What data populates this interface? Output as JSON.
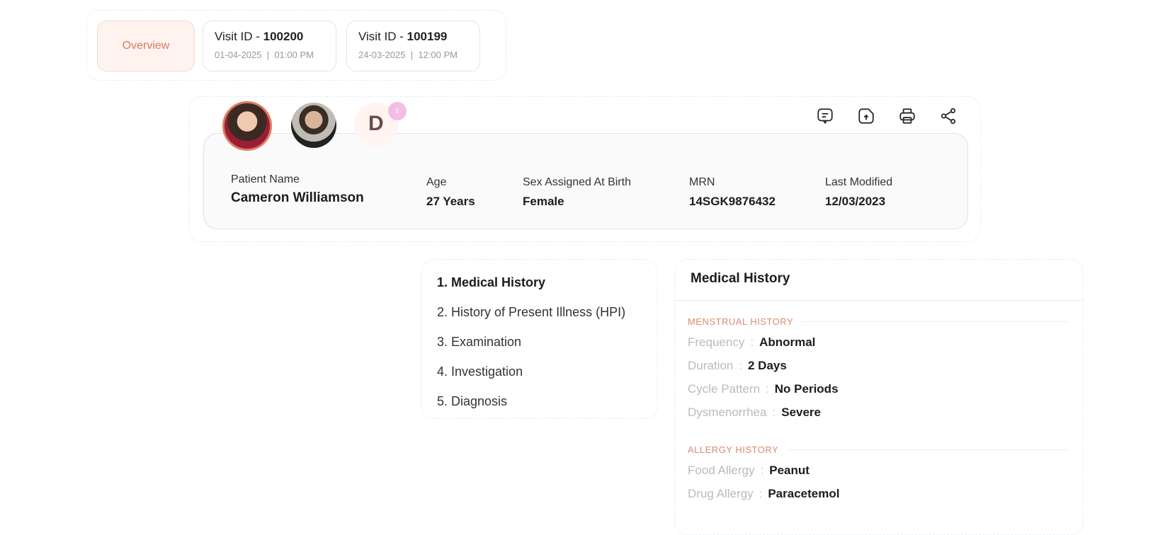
{
  "tabs": {
    "overview": "Overview",
    "visits": [
      {
        "prefix": "Visit ID - ",
        "id": "100200",
        "date": "01-04-2025",
        "time": "01:00 PM"
      },
      {
        "prefix": "Visit ID - ",
        "id": "100199",
        "date": "24-03-2025",
        "time": "12:00 PM"
      }
    ]
  },
  "patient": {
    "avatar_letter": "D",
    "fields": [
      {
        "label": "Patient Name",
        "value": "Cameron Williamson"
      },
      {
        "label": "Age",
        "value": "27 Years"
      },
      {
        "label": "Sex Assigned At Birth",
        "value": "Female"
      },
      {
        "label": "MRN",
        "value": "14SGK9876432"
      },
      {
        "label": "Last Modified",
        "value": "12/03/2023"
      }
    ],
    "actions": [
      "comment-icon",
      "upload-file-icon",
      "print-icon",
      "share-icon"
    ]
  },
  "steps": [
    "1. Medical History",
    "2. History of Present Illness (HPI)",
    "3. Examination",
    "4. Investigation",
    "5. Diagnosis"
  ],
  "medical_history": {
    "title": "Medical History",
    "sections": [
      {
        "title": "MENSTRUAL HISTORY",
        "rows": [
          {
            "k": "Frequency",
            "v": "Abnormal"
          },
          {
            "k": "Duration",
            "v": "2 Days"
          },
          {
            "k": "Cycle Pattern",
            "v": "No Periods"
          },
          {
            "k": "Dysmenorrhea",
            "v": "Severe"
          }
        ]
      },
      {
        "title": "ALLERGY HISTORY",
        "rows": [
          {
            "k": "Food Allergy",
            "v": "Peanut"
          },
          {
            "k": "Drug Allergy",
            "v": "Paracetemol"
          }
        ]
      }
    ]
  },
  "colors": {
    "accent": "#d97a5c",
    "pink": "#f3bde6"
  }
}
